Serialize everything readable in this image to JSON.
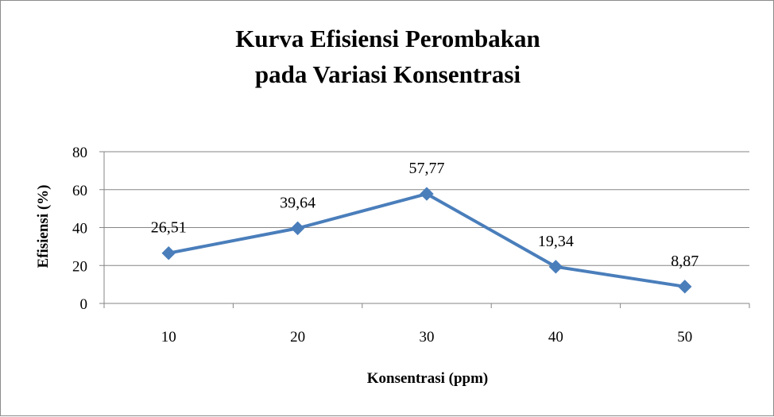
{
  "chart_data": {
    "type": "line",
    "title_lines": [
      "Kurva Efisiensi  Perombakan",
      "pada Variasi Konsentrasi"
    ],
    "xlabel": "Konsentrasi (ppm)",
    "ylabel": "Efisiensi (%)",
    "categories": [
      "10",
      "20",
      "30",
      "40",
      "50"
    ],
    "series": [
      {
        "values": [
          26.51,
          39.64,
          57.77,
          19.34,
          8.87
        ]
      }
    ],
    "data_labels": [
      "26,51",
      "39,64",
      "57,77",
      "19,34",
      "8,87"
    ],
    "ylim": [
      0,
      80
    ],
    "yticks": [
      0,
      20,
      40,
      60,
      80
    ],
    "grid": true,
    "legend": "none",
    "line_color": "#4a7ebb"
  }
}
